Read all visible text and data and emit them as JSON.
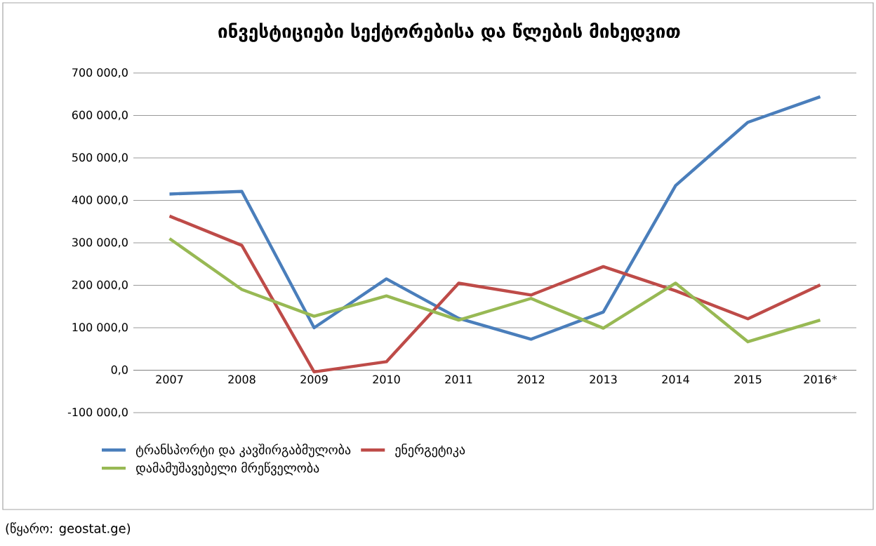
{
  "chart_data": {
    "type": "line",
    "title": "ინვესტიციები სექტორებისა და წლების მიხედვით",
    "categories": [
      "2007",
      "2008",
      "2009",
      "2010",
      "2011",
      "2012",
      "2013",
      "2014",
      "2015",
      "2016*"
    ],
    "series": [
      {
        "name": "ტრანსპორტი და კავშირგაბმულობა",
        "color": "#4a7ebb",
        "values": [
          415000,
          421000,
          100000,
          215000,
          122000,
          73000,
          137000,
          435000,
          584000,
          644000
        ]
      },
      {
        "name": "ენერგეტიკა",
        "color": "#be4b48",
        "values": [
          363000,
          294000,
          -4000,
          20000,
          205000,
          177000,
          244000,
          187000,
          121000,
          201000
        ]
      },
      {
        "name": "დამამუშავებელი მრეწველობა",
        "color": "#98b954",
        "values": [
          310000,
          190000,
          127000,
          175000,
          118000,
          169000,
          99000,
          205000,
          67000,
          118000
        ]
      }
    ],
    "ylim": [
      -100000,
      700000
    ],
    "yticks": [
      {
        "value": -100000,
        "label": "-100 000,0"
      },
      {
        "value": 0,
        "label": "0,0"
      },
      {
        "value": 100000,
        "label": "100 000,0"
      },
      {
        "value": 200000,
        "label": "200 000,0"
      },
      {
        "value": 300000,
        "label": "300 000,0"
      },
      {
        "value": 400000,
        "label": "400 000,0"
      },
      {
        "value": 500000,
        "label": "500 000,0"
      },
      {
        "value": 600000,
        "label": "600 000,0"
      },
      {
        "value": 700000,
        "label": "700 000,0"
      }
    ],
    "grid": "y",
    "legend": "bottom",
    "marker": "none",
    "line_style": "solid",
    "annotations": [
      "(წყარო: geostat.ge)"
    ]
  }
}
